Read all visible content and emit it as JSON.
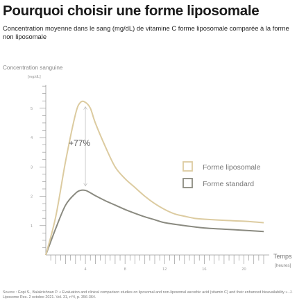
{
  "title": "Pourquoi choisir une forme liposomale",
  "subtitle": "Concentration moyenne dans le sang (mg/dL) de vitamine C forme liposomale comparée à la forme non liposomale",
  "source": "Source : Gopi S., Balakrishnan P. « Evaluation and clinical comparison studies on liposomal and non-liposomal ascorbic acid (vitamin C) and their enhanced bioavailability ». J. Liposome Res. 2 octobre 2021. Vol. 31, n°4, p. 356-364.",
  "colors": {
    "liposomal": "#dccba0",
    "standard": "#8a8a80",
    "axis": "#9a9a9a",
    "arrow": "#bdbdbd"
  },
  "chart_data": {
    "type": "line",
    "ylabel": "Concentration sanguine",
    "yunit": "[mg/dL]",
    "xlabel": "Temps",
    "xunit": "[heures]",
    "xlim": [
      0,
      22
    ],
    "ylim": [
      0,
      5.8
    ],
    "x_ticks": [
      4,
      8,
      12,
      16,
      20
    ],
    "y_ticks": [
      1,
      2,
      3,
      4,
      5
    ],
    "annotation": "+77%",
    "grid": false,
    "legend_position": "right",
    "series": [
      {
        "name": "Forme liposomale",
        "color_key": "liposomal",
        "x": [
          0,
          1,
          2,
          3,
          3.5,
          4,
          4.5,
          5,
          6,
          7,
          8,
          9,
          10,
          11,
          12,
          13,
          14,
          15,
          16,
          18,
          20,
          22
        ],
        "y": [
          0,
          1.3,
          3.2,
          4.8,
          5.2,
          5.2,
          5.0,
          4.5,
          3.7,
          3.0,
          2.6,
          2.3,
          2.0,
          1.75,
          1.55,
          1.4,
          1.32,
          1.25,
          1.22,
          1.18,
          1.15,
          1.1
        ]
      },
      {
        "name": "Forme standard",
        "color_key": "standard",
        "x": [
          0,
          1,
          2,
          3,
          3.5,
          4,
          4.5,
          5,
          6,
          7,
          8,
          9,
          10,
          11,
          12,
          14,
          16,
          18,
          20,
          22
        ],
        "y": [
          0,
          0.9,
          1.7,
          2.1,
          2.2,
          2.2,
          2.12,
          2.02,
          1.85,
          1.7,
          1.55,
          1.42,
          1.3,
          1.2,
          1.1,
          1.0,
          0.92,
          0.88,
          0.84,
          0.8
        ]
      }
    ],
    "peak_arrow": {
      "x": 4,
      "from": 5.05,
      "to": 2.35
    }
  }
}
